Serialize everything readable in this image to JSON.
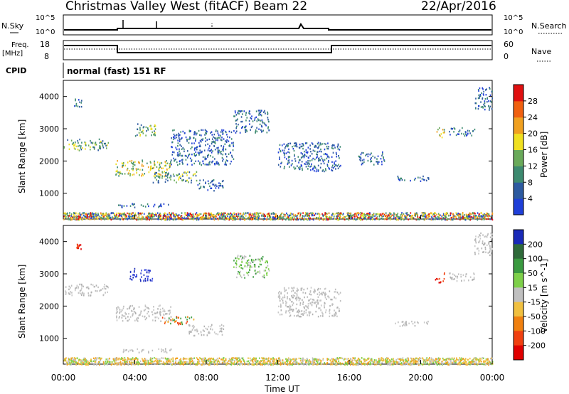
{
  "header": {
    "title": "Christmas Valley West (fitACF)",
    "beam": "Beam 22",
    "date": "22/Apr/2016"
  },
  "top_panels": {
    "nsky_label": "N.Sky",
    "nsky_ticks": [
      "10^5",
      "10^0"
    ],
    "nsearch_label": "N.Search",
    "nsearch_ticks": [
      "10^5",
      "10^0"
    ],
    "freq_label_line1": "Freq.",
    "freq_label_line2": "[MHz]",
    "freq_ticks": [
      "18",
      "8"
    ],
    "nave_label": "Nave",
    "nave_ticks": [
      "60",
      "0"
    ],
    "cpid_label": "CPID",
    "cpid_text": "normal (fast) 151 RF"
  },
  "chart_data": [
    {
      "type": "heatmap",
      "title": "",
      "quantity": "Power",
      "xlabel": "",
      "ylabel": "Slant Range [km]",
      "x_ticks": [
        "00:00",
        "04:00",
        "08:00",
        "12:00",
        "16:00",
        "20:00",
        "00:00"
      ],
      "y_ticks": [
        1000,
        2000,
        3000,
        4000
      ],
      "ylim": [
        200,
        4500
      ],
      "colorbar": {
        "label": "Power [dB]",
        "ticks": [
          4,
          8,
          12,
          16,
          20,
          24,
          28
        ],
        "colors": [
          "#1f3fd8",
          "#2d5aa0",
          "#3d8a70",
          "#6aaa5a",
          "#f0e020",
          "#f0a020",
          "#f06010",
          "#e01010"
        ]
      },
      "scatter_regions": [
        {
          "t0": 0.0,
          "t1": 2.5,
          "r0": 2350,
          "r1": 2700,
          "level": "mid"
        },
        {
          "t0": 0.5,
          "t1": 1.0,
          "r0": 3700,
          "r1": 3950,
          "level": "low"
        },
        {
          "t0": 2.9,
          "t1": 6.0,
          "r0": 1550,
          "r1": 2050,
          "level": "high"
        },
        {
          "t0": 4.0,
          "t1": 5.2,
          "r0": 2800,
          "r1": 3200,
          "level": "mid"
        },
        {
          "t0": 5.0,
          "t1": 7.5,
          "r0": 1350,
          "r1": 1700,
          "level": "mid"
        },
        {
          "t0": 7.5,
          "t1": 9.0,
          "r0": 1100,
          "r1": 1450,
          "level": "low"
        },
        {
          "t0": 3.0,
          "t1": 6.0,
          "r0": 580,
          "r1": 700,
          "level": "low"
        },
        {
          "t0": 6.0,
          "t1": 9.5,
          "r0": 1900,
          "r1": 3000,
          "level": "low"
        },
        {
          "t0": 9.5,
          "t1": 11.5,
          "r0": 2900,
          "r1": 3600,
          "level": "low"
        },
        {
          "t0": 12.0,
          "t1": 15.5,
          "r0": 1700,
          "r1": 2600,
          "level": "low"
        },
        {
          "t0": 16.5,
          "t1": 18.0,
          "r0": 1900,
          "r1": 2300,
          "level": "low"
        },
        {
          "t0": 18.5,
          "t1": 20.5,
          "r0": 1400,
          "r1": 1550,
          "level": "low"
        },
        {
          "t0": 20.8,
          "t1": 21.3,
          "r0": 2750,
          "r1": 3050,
          "level": "high"
        },
        {
          "t0": 21.5,
          "t1": 23.0,
          "r0": 2800,
          "r1": 3050,
          "level": "low"
        },
        {
          "t0": 23.0,
          "t1": 24.0,
          "r0": 3600,
          "r1": 4300,
          "level": "low"
        },
        {
          "t0": 0.0,
          "t1": 24.0,
          "r0": 200,
          "r1": 420,
          "level": "ground"
        }
      ]
    },
    {
      "type": "heatmap",
      "title": "",
      "quantity": "Velocity",
      "xlabel": "Time UT",
      "ylabel": "Slant Range [km]",
      "x_ticks": [
        "00:00",
        "04:00",
        "08:00",
        "12:00",
        "16:00",
        "20:00",
        "00:00"
      ],
      "y_ticks": [
        1000,
        2000,
        3000,
        4000
      ],
      "ylim": [
        200,
        4500
      ],
      "colorbar": {
        "label": "Velocity [m s^-1]",
        "ticks": [
          200,
          100,
          50,
          15,
          -15,
          -50,
          -100,
          -200
        ],
        "colors": [
          "#1a2ab8",
          "#2f6a3a",
          "#3a9a40",
          "#7ed04a",
          "#c0c0c0",
          "#f0c040",
          "#f08010",
          "#f04010",
          "#e00000"
        ]
      },
      "scatter_regions": [
        {
          "t0": 0.0,
          "t1": 2.5,
          "r0": 2350,
          "r1": 2700,
          "level": "gray"
        },
        {
          "t0": 0.7,
          "t1": 1.0,
          "r0": 3750,
          "r1": 3950,
          "level": "red"
        },
        {
          "t0": 2.9,
          "t1": 6.0,
          "r0": 1550,
          "r1": 2050,
          "level": "gray"
        },
        {
          "t0": 3.7,
          "t1": 5.0,
          "r0": 2800,
          "r1": 3200,
          "level": "blue"
        },
        {
          "t0": 5.5,
          "t1": 7.3,
          "r0": 1450,
          "r1": 1700,
          "level": "orange"
        },
        {
          "t0": 7.0,
          "t1": 9.0,
          "r0": 1100,
          "r1": 1450,
          "level": "gray"
        },
        {
          "t0": 3.0,
          "t1": 6.0,
          "r0": 580,
          "r1": 700,
          "level": "gray"
        },
        {
          "t0": 9.5,
          "t1": 11.5,
          "r0": 2900,
          "r1": 3600,
          "level": "green"
        },
        {
          "t0": 12.0,
          "t1": 15.5,
          "r0": 1700,
          "r1": 2600,
          "level": "gray"
        },
        {
          "t0": 18.5,
          "t1": 20.5,
          "r0": 1400,
          "r1": 1550,
          "level": "gray"
        },
        {
          "t0": 20.8,
          "t1": 21.3,
          "r0": 2750,
          "r1": 3050,
          "level": "red"
        },
        {
          "t0": 21.5,
          "t1": 23.0,
          "r0": 2800,
          "r1": 3050,
          "level": "gray"
        },
        {
          "t0": 23.0,
          "t1": 24.0,
          "r0": 3600,
          "r1": 4300,
          "level": "gray"
        },
        {
          "t0": 0.0,
          "t1": 24.0,
          "r0": 200,
          "r1": 420,
          "level": "ground"
        }
      ]
    }
  ]
}
